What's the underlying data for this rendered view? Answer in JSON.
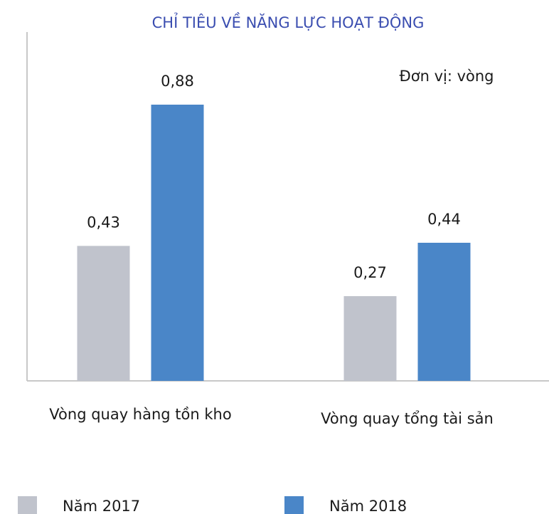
{
  "chart_data": {
    "type": "bar",
    "title": "CHỈ TIÊU VỀ NĂNG LỰC HOẠT ĐỘNG",
    "annotation": "Đơn vị: vòng",
    "categories": [
      "Vòng quay hàng tồn kho",
      "Vòng quay tổng tài sản"
    ],
    "series": [
      {
        "name": "Năm 2017",
        "color": "#c0c3cc",
        "values": [
          0.43,
          0.27
        ],
        "value_labels": [
          "0,43",
          "0,27"
        ]
      },
      {
        "name": "Năm 2018",
        "color": "#4a86c8",
        "values": [
          0.88,
          0.44
        ],
        "value_labels": [
          "0,88",
          "0,44"
        ]
      }
    ],
    "ylim": [
      0,
      1.1
    ]
  }
}
